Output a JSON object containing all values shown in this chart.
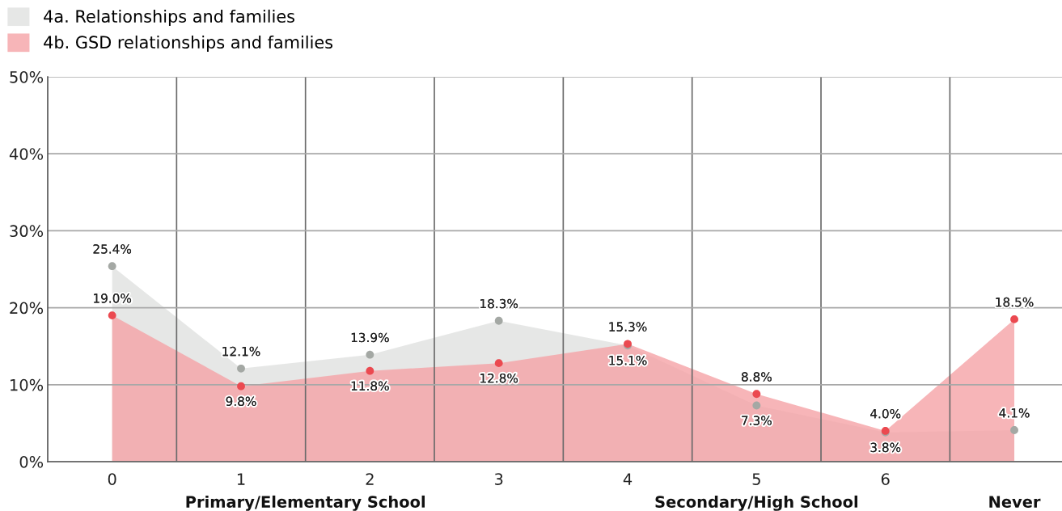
{
  "chart_data": {
    "type": "area",
    "categories": [
      "0",
      "1",
      "2",
      "3",
      "4",
      "5",
      "6",
      null
    ],
    "series": [
      {
        "name": "4a. Relationships and families",
        "color": "#e6e7e6",
        "values": [
          25.4,
          12.1,
          13.9,
          18.3,
          15.1,
          7.3,
          3.8,
          4.1
        ],
        "value_labels": [
          "25.4%",
          "12.1%",
          "13.9%",
          "18.3%",
          "15.1%",
          "7.3%",
          "3.8%",
          "4.1%"
        ]
      },
      {
        "name": "4b. GSD relationships and families",
        "color": "#f7b5b8",
        "values": [
          19.0,
          9.8,
          11.8,
          12.8,
          15.3,
          8.8,
          4.0,
          18.5
        ],
        "value_labels": [
          "19.0%",
          "9.8%",
          "11.8%",
          "12.8%",
          "15.3%",
          "8.8%",
          "4.0%",
          "18.5%"
        ]
      }
    ],
    "ylim": [
      0,
      50
    ],
    "yticks": [
      {
        "value": 0,
        "label": "0%"
      },
      {
        "value": 10,
        "label": "10%"
      },
      {
        "value": 20,
        "label": "20%"
      },
      {
        "value": 30,
        "label": "30%"
      },
      {
        "value": 40,
        "label": "40%"
      },
      {
        "value": 50,
        "label": "50%"
      }
    ],
    "grid": true,
    "legend": "top left",
    "marker": "circle",
    "annotations": [
      "Primary/Elementary School",
      "Secondary/High School",
      "Never"
    ]
  }
}
